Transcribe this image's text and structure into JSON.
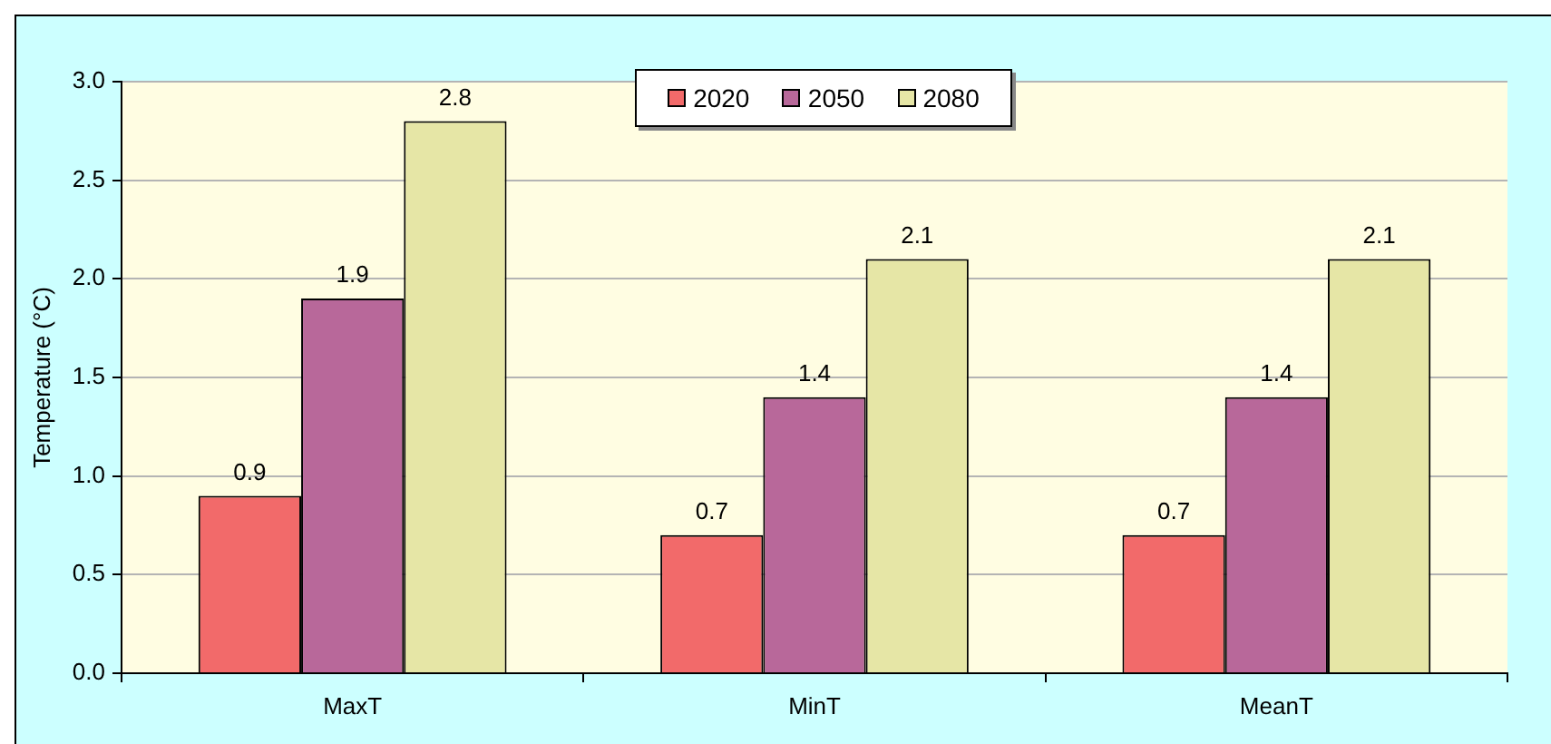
{
  "chart_data": {
    "type": "bar",
    "ylabel": "Temperature (°C)",
    "categories": [
      "MaxT",
      "MinT",
      "MeanT"
    ],
    "series": [
      {
        "name": "2020",
        "color": "#f26a6a",
        "values": [
          0.9,
          0.7,
          0.7
        ]
      },
      {
        "name": "2050",
        "color": "#b8689a",
        "values": [
          1.9,
          1.4,
          1.4
        ]
      },
      {
        "name": "2080",
        "color": "#e6e6a6",
        "values": [
          2.8,
          2.1,
          2.1
        ]
      }
    ],
    "ylim": [
      0,
      3
    ],
    "yticks": [
      {
        "value": 0,
        "label": "0.0"
      },
      0.5,
      {
        "value": 1,
        "label": "1.0"
      },
      1.5,
      {
        "value": 2,
        "label": "2.0"
      },
      2.5,
      {
        "value": 3,
        "label": "3.0"
      }
    ],
    "grid": "y",
    "legend": "top",
    "data_labels": true
  }
}
